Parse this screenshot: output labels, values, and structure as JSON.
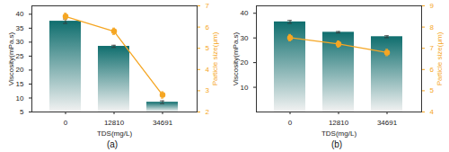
{
  "chart_data": [
    {
      "type": "bar",
      "title": "(a)",
      "x_label": "TDS(mg/L)",
      "y_label": "Viscosity(mPa.s)",
      "y2_label": "Particle size(μm)",
      "categories": [
        "0",
        "12810",
        "34691"
      ],
      "ylim": [
        5,
        43
      ],
      "yticks": [
        5,
        10,
        15,
        20,
        25,
        30,
        35,
        40
      ],
      "y2lim": [
        2,
        7
      ],
      "y2ticks": [
        2,
        3,
        4,
        5,
        6,
        7
      ],
      "grid": false,
      "series": [
        {
          "type": "bar",
          "color": "#0f6e6e",
          "values": [
            37.5,
            28.5,
            8.5
          ],
          "errors": [
            0.8,
            0.4,
            0.5
          ]
        },
        {
          "type": "line",
          "axis": "y2",
          "color": "#f5a623",
          "marker": "circle",
          "values": [
            6.5,
            5.8,
            2.8
          ],
          "errors": [
            0.15,
            0.15,
            0.15
          ]
        }
      ]
    },
    {
      "type": "bar",
      "title": "(b)",
      "x_label": "TDS(mg/L)",
      "y_label": "Viscosity(mPa.s)",
      "y2_label": "Particle size(μm)",
      "categories": [
        "0",
        "12810",
        "34691"
      ],
      "ylim": [
        0,
        43
      ],
      "yticks": [
        10,
        20,
        30,
        40
      ],
      "y2lim": [
        4,
        9
      ],
      "y2ticks": [
        4,
        5,
        6,
        7,
        8,
        9
      ],
      "grid": false,
      "series": [
        {
          "type": "bar",
          "color": "#0f6e6e",
          "values": [
            36.5,
            32.3,
            30.5
          ],
          "errors": [
            0.6,
            0.3,
            0.4
          ]
        },
        {
          "type": "line",
          "axis": "y2",
          "color": "#f5a623",
          "marker": "circle",
          "values": [
            7.5,
            7.2,
            6.8
          ],
          "errors": [
            0.15,
            0.15,
            0.15
          ]
        }
      ]
    }
  ]
}
